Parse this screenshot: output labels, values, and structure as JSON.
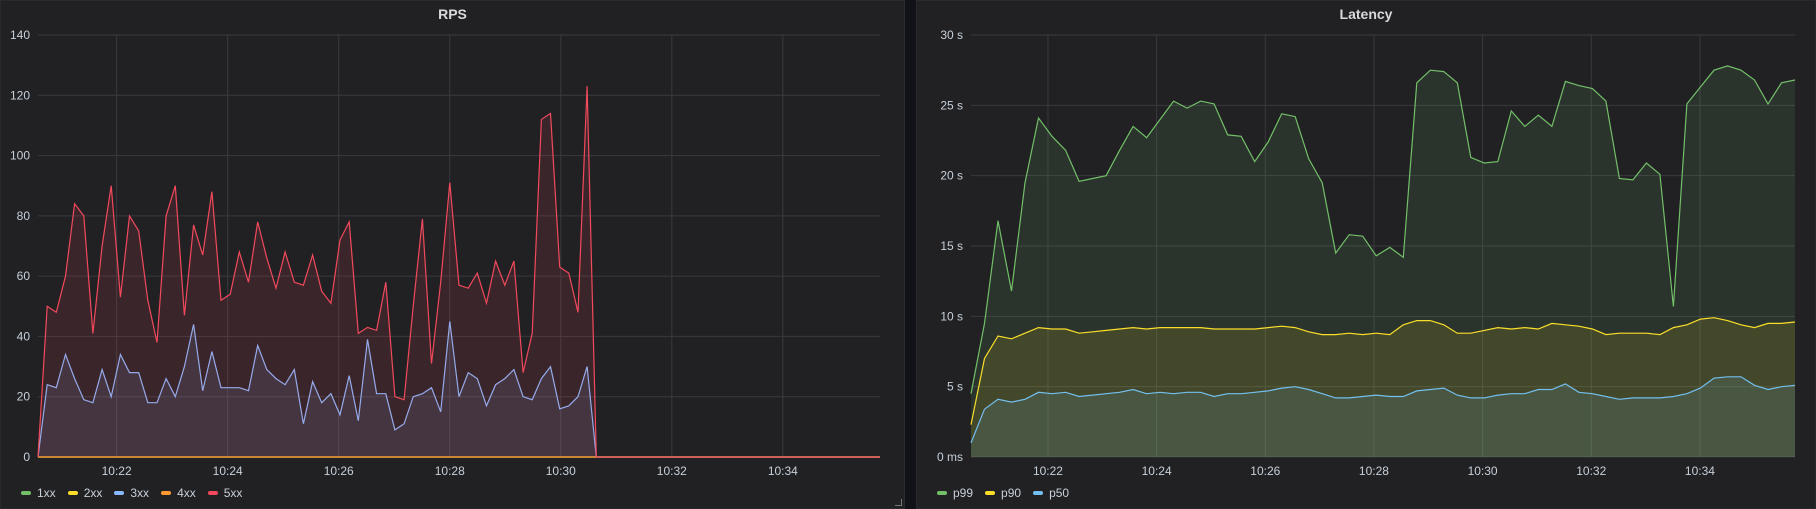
{
  "colors": {
    "panel_bg": "#212124",
    "grid": "#3a3a3e",
    "text": "#c7d0d9"
  },
  "x_ticks": [
    "10:22",
    "10:24",
    "10:26",
    "10:28",
    "10:30",
    "10:32",
    "10:34"
  ],
  "chart_data": [
    {
      "type": "area",
      "title": "RPS",
      "xlabel": "",
      "ylabel": "",
      "ylim": [
        0,
        140
      ],
      "y_ticks": [
        "0",
        "20",
        "40",
        "60",
        "80",
        "100",
        "120",
        "140"
      ],
      "x_range": [
        "10:20:35",
        "10:35:45"
      ],
      "legend_position": "bottom-left",
      "grid": true,
      "series": [
        {
          "name": "1xx",
          "color": "#73bf69",
          "values": [
            0,
            0,
            0,
            0,
            0,
            0,
            0,
            0,
            0,
            0,
            0,
            0,
            0,
            0,
            0,
            0,
            0,
            0,
            0,
            0,
            0,
            0,
            0,
            0,
            0,
            0,
            0,
            0,
            0,
            0,
            0,
            0,
            0,
            0,
            0,
            0,
            0,
            0,
            0,
            0,
            0,
            0,
            0,
            0,
            0,
            0,
            0,
            0,
            0,
            0,
            0,
            0,
            0,
            0,
            0,
            0,
            0,
            0,
            0,
            0,
            0,
            0,
            0,
            0,
            0,
            0,
            0,
            0,
            0,
            0,
            0,
            0,
            0,
            0,
            0,
            0,
            0,
            0,
            0,
            0,
            0,
            0,
            0,
            0,
            0,
            0,
            0,
            0,
            0,
            0,
            0,
            0,
            0
          ]
        },
        {
          "name": "2xx",
          "color": "#fade2a",
          "values": [
            0,
            0,
            0,
            0,
            0,
            0,
            0,
            0,
            0,
            0,
            0,
            0,
            0,
            0,
            0,
            0,
            0,
            0,
            0,
            0,
            0,
            0,
            0,
            0,
            0,
            0,
            0,
            0,
            0,
            0,
            0,
            0,
            0,
            0,
            0,
            0,
            0,
            0,
            0,
            0,
            0,
            0,
            0,
            0,
            0,
            0,
            0,
            0,
            0,
            0,
            0,
            0,
            0,
            0,
            0,
            0,
            0,
            0,
            0,
            0,
            0,
            0,
            0,
            0,
            0,
            0,
            0,
            0,
            0,
            0,
            0,
            0,
            0,
            0,
            0,
            0,
            0,
            0,
            0,
            0,
            0,
            0,
            0,
            0,
            0,
            0,
            0,
            0,
            0,
            0,
            0,
            0,
            0
          ]
        },
        {
          "name": "3xx",
          "color": "#8ab8ff",
          "values": [
            0,
            24,
            23,
            34,
            26,
            19,
            18,
            29,
            20,
            34,
            28,
            28,
            18,
            18,
            26,
            20,
            30,
            44,
            22,
            35,
            23,
            23,
            23,
            22,
            37,
            29,
            26,
            24,
            29,
            11,
            25,
            18,
            21,
            14,
            27,
            12,
            39,
            21,
            21,
            9,
            11,
            20,
            21,
            23,
            15,
            45,
            20,
            28,
            26,
            17,
            24,
            26,
            29,
            20,
            19,
            26,
            30,
            16,
            17,
            20,
            30,
            0,
            0,
            0,
            0,
            0,
            0,
            0,
            0,
            0,
            0,
            0,
            0,
            0,
            0,
            0,
            0,
            0,
            0,
            0,
            0,
            0,
            0,
            0,
            0,
            0,
            0,
            0,
            0,
            0,
            0,
            0,
            0
          ]
        },
        {
          "name": "4xx",
          "color": "#ff9830",
          "values": [
            0,
            0,
            0,
            0,
            0,
            0,
            0,
            0,
            0,
            0,
            0,
            0,
            0,
            0,
            0,
            0,
            0,
            0,
            0,
            0,
            0,
            0,
            0,
            0,
            0,
            0,
            0,
            0,
            0,
            0,
            0,
            0,
            0,
            0,
            0,
            0,
            0,
            0,
            0,
            0,
            0,
            0,
            0,
            0,
            0,
            0,
            0,
            0,
            0,
            0,
            0,
            0,
            0,
            0,
            0,
            0,
            0,
            0,
            0,
            0,
            0,
            0,
            0,
            0,
            0,
            0,
            0,
            0,
            0,
            0,
            0,
            0,
            0,
            0,
            0,
            0,
            0,
            0,
            0,
            0,
            0,
            0,
            0,
            0,
            0,
            0,
            0,
            0,
            0,
            0,
            0,
            0,
            0
          ]
        },
        {
          "name": "5xx",
          "color": "#f2495c",
          "values": [
            0,
            50,
            48,
            60,
            84,
            80,
            41,
            70,
            90,
            53,
            80,
            75,
            52,
            38,
            80,
            90,
            47,
            77,
            67,
            88,
            52,
            54,
            68,
            58,
            78,
            66,
            56,
            68,
            58,
            57,
            67,
            55,
            51,
            72,
            78,
            41,
            43,
            42,
            58,
            20,
            19,
            50,
            79,
            31,
            58,
            91,
            57,
            56,
            61,
            51,
            65,
            57,
            65,
            28,
            41,
            112,
            114,
            63,
            61,
            48,
            123,
            0,
            0,
            0,
            0,
            0,
            0,
            0,
            0,
            0,
            0,
            0,
            0,
            0,
            0,
            0,
            0,
            0,
            0,
            0,
            0,
            0,
            0,
            0,
            0,
            0,
            0,
            0,
            0,
            0,
            0,
            0,
            0
          ]
        }
      ]
    },
    {
      "type": "area",
      "title": "Latency",
      "xlabel": "",
      "ylabel": "",
      "ylim": [
        0,
        30
      ],
      "y_ticks": [
        "0 ms",
        "5 s",
        "10 s",
        "15 s",
        "20 s",
        "25 s",
        "30 s"
      ],
      "x_range": [
        "10:20:35",
        "10:35:45"
      ],
      "legend_position": "bottom-left",
      "grid": true,
      "series": [
        {
          "name": "p99",
          "color": "#73bf69",
          "values": [
            4.5,
            9.5,
            16.8,
            11.8,
            19.5,
            24.1,
            22.8,
            21.8,
            19.6,
            19.8,
            20,
            21.8,
            23.5,
            22.7,
            24,
            25.3,
            24.8,
            25.3,
            25.1,
            22.9,
            22.8,
            21,
            22.4,
            24.4,
            24.2,
            21.2,
            19.5,
            14.5,
            15.8,
            15.7,
            14.3,
            14.9,
            14.2,
            26.6,
            27.5,
            27.4,
            26.6,
            21.3,
            20.9,
            21,
            24.6,
            23.5,
            24.3,
            23.5,
            26.7,
            26.4,
            26.2,
            25.3,
            19.8,
            19.7,
            20.9,
            20.1,
            10.7,
            25.1,
            26.3,
            27.5,
            27.8,
            27.5,
            26.8,
            25.1,
            26.6,
            26.8
          ]
        },
        {
          "name": "p90",
          "color": "#fade2a",
          "values": [
            2.3,
            7,
            8.6,
            8.4,
            8.8,
            9.2,
            9.1,
            9.1,
            8.8,
            8.9,
            9,
            9.1,
            9.2,
            9.1,
            9.2,
            9.2,
            9.2,
            9.2,
            9.1,
            9.1,
            9.1,
            9.1,
            9.2,
            9.3,
            9.2,
            8.9,
            8.7,
            8.7,
            8.8,
            8.7,
            8.8,
            8.7,
            9.4,
            9.7,
            9.7,
            9.4,
            8.8,
            8.8,
            9,
            9.2,
            9.1,
            9.2,
            9.1,
            9.5,
            9.4,
            9.3,
            9.1,
            8.7,
            8.8,
            8.8,
            8.8,
            8.7,
            9.2,
            9.4,
            9.8,
            9.9,
            9.7,
            9.4,
            9.2,
            9.5,
            9.5,
            9.6
          ]
        },
        {
          "name": "p50",
          "color": "#73bfef",
          "values": [
            1,
            3.4,
            4.1,
            3.9,
            4.1,
            4.6,
            4.5,
            4.6,
            4.3,
            4.4,
            4.5,
            4.6,
            4.8,
            4.5,
            4.6,
            4.5,
            4.6,
            4.6,
            4.3,
            4.5,
            4.5,
            4.6,
            4.7,
            4.9,
            5,
            4.8,
            4.5,
            4.2,
            4.2,
            4.3,
            4.4,
            4.3,
            4.3,
            4.7,
            4.8,
            4.9,
            4.4,
            4.2,
            4.2,
            4.4,
            4.5,
            4.5,
            4.8,
            4.8,
            5.2,
            4.6,
            4.5,
            4.3,
            4.1,
            4.2,
            4.2,
            4.2,
            4.3,
            4.5,
            4.9,
            5.6,
            5.7,
            5.7,
            5.1,
            4.8,
            5,
            5.1
          ]
        }
      ]
    }
  ]
}
